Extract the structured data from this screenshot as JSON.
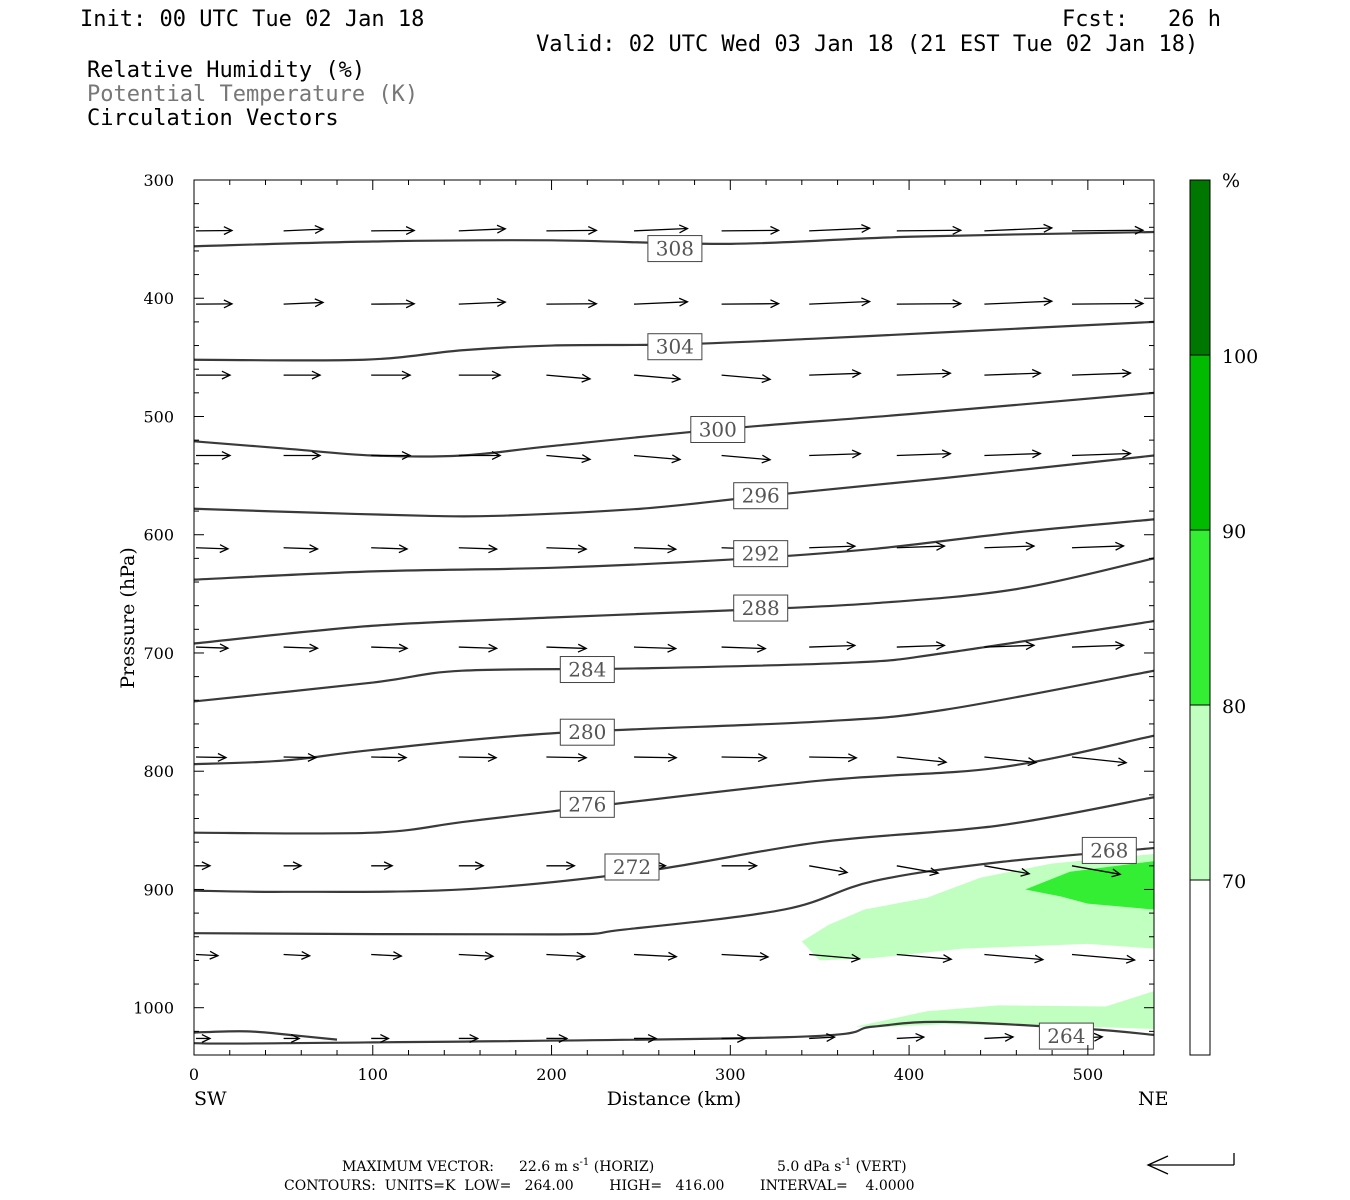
{
  "header": {
    "init": "Init: 00 UTC Tue 02 Jan 18",
    "fcst": "Fcst:   26 h",
    "valid": "Valid: 02 UTC Wed 03 Jan 18 (21 EST Tue 02 Jan 18)",
    "field1": "Relative Humidity (%)",
    "field2": "Potential Temperature (K)",
    "field3": "Circulation Vectors"
  },
  "footer": {
    "max_vector_label": "MAXIMUM VECTOR:",
    "horiz_value": "22.6 m s",
    "horiz_exp": "-1",
    "horiz_tag": "(HORIZ)",
    "vert_value": "5.0 dPa s",
    "vert_exp": "-1",
    "vert_tag": "(VERT)",
    "contours_line": "CONTOURS:  UNITS=K  LOW=   264.00        HIGH=   416.00        INTERVAL=    4.0000"
  },
  "colorbar": {
    "unit": "%",
    "levels": [
      "70",
      "80",
      "90",
      "100"
    ],
    "colors": [
      "#ffffff",
      "#c0ffc0",
      "#33ee33",
      "#00bb00",
      "#007700"
    ]
  },
  "chart_data": {
    "type": "cross-section",
    "xlabel": "Distance (km)",
    "ylabel": "Pressure (hPa)",
    "xlim": [
      0,
      537
    ],
    "ylim": [
      1040,
      300
    ],
    "x_ticks": [
      "0",
      "100",
      "200",
      "300",
      "400",
      "500"
    ],
    "y_ticks": [
      "300",
      "400",
      "500",
      "600",
      "700",
      "800",
      "900",
      "1000"
    ],
    "left_end_label": "SW",
    "right_end_label": "NE",
    "theta_contours": [
      {
        "level": "308",
        "label_at": [
          269,
          358
        ],
        "points": [
          [
            0,
            356
          ],
          [
            100,
            352
          ],
          [
            200,
            351
          ],
          [
            300,
            354
          ],
          [
            400,
            348
          ],
          [
            537,
            344
          ]
        ]
      },
      {
        "level": "304",
        "label_at": [
          269,
          441
        ],
        "points": [
          [
            0,
            452
          ],
          [
            95,
            452
          ],
          [
            150,
            444
          ],
          [
            200,
            440
          ],
          [
            270,
            439
          ],
          [
            350,
            434
          ],
          [
            430,
            428
          ],
          [
            537,
            420
          ]
        ]
      },
      {
        "level": "300",
        "label_at": [
          293,
          511
        ],
        "points": [
          [
            0,
            521
          ],
          [
            50,
            527
          ],
          [
            100,
            533
          ],
          [
            150,
            533
          ],
          [
            200,
            525
          ],
          [
            300,
            510
          ],
          [
            400,
            498
          ],
          [
            537,
            480
          ]
        ]
      },
      {
        "level": "296",
        "label_at": [
          317,
          567
        ],
        "points": [
          [
            0,
            578
          ],
          [
            60,
            581
          ],
          [
            130,
            584
          ],
          [
            170,
            584
          ],
          [
            250,
            578
          ],
          [
            320,
            567
          ],
          [
            420,
            552
          ],
          [
            537,
            533
          ]
        ]
      },
      {
        "level": "292",
        "label_at": [
          317,
          616
        ],
        "points": [
          [
            0,
            638
          ],
          [
            100,
            631
          ],
          [
            200,
            628
          ],
          [
            300,
            621
          ],
          [
            380,
            612
          ],
          [
            460,
            598
          ],
          [
            537,
            587
          ]
        ]
      },
      {
        "level": "288",
        "label_at": [
          317,
          662
        ],
        "points": [
          [
            0,
            692
          ],
          [
            100,
            677
          ],
          [
            200,
            670
          ],
          [
            300,
            664
          ],
          [
            380,
            658
          ],
          [
            460,
            646
          ],
          [
            537,
            620
          ]
        ]
      },
      {
        "level": "284",
        "label_at": [
          220,
          714
        ],
        "points": [
          [
            0,
            741
          ],
          [
            100,
            725
          ],
          [
            150,
            715
          ],
          [
            250,
            713
          ],
          [
            370,
            708
          ],
          [
            420,
            700
          ],
          [
            537,
            673
          ]
        ]
      },
      {
        "level": "280",
        "label_at": [
          220,
          767
        ],
        "points": [
          [
            0,
            794
          ],
          [
            50,
            791
          ],
          [
            100,
            782
          ],
          [
            200,
            768
          ],
          [
            350,
            758
          ],
          [
            420,
            748
          ],
          [
            537,
            715
          ]
        ]
      },
      {
        "level": "276",
        "label_at": [
          220,
          828
        ],
        "points": [
          [
            0,
            852
          ],
          [
            100,
            852
          ],
          [
            150,
            843
          ],
          [
            200,
            834
          ],
          [
            350,
            808
          ],
          [
            450,
            797
          ],
          [
            537,
            770
          ]
        ]
      },
      {
        "level": "272",
        "label_at": [
          245,
          881
        ],
        "points": [
          [
            0,
            901
          ],
          [
            50,
            902
          ],
          [
            150,
            900
          ],
          [
            250,
            885
          ],
          [
            350,
            860
          ],
          [
            450,
            846
          ],
          [
            537,
            822
          ]
        ]
      },
      {
        "level": "268",
        "label_at": [
          512,
          867
        ],
        "points": [
          [
            0,
            937
          ],
          [
            200,
            938
          ],
          [
            240,
            934
          ],
          [
            330,
            917
          ],
          [
            380,
            893
          ],
          [
            450,
            877
          ],
          [
            537,
            865
          ]
        ]
      },
      {
        "level": "264",
        "label_at": [
          488,
          1024
        ],
        "points": [
          [
            0,
            1030
          ],
          [
            50,
            1030
          ],
          [
            330,
            1025
          ],
          [
            380,
            1016
          ],
          [
            420,
            1012
          ],
          [
            500,
            1018
          ],
          [
            537,
            1023
          ]
        ]
      },
      {
        "level": "",
        "label_at": null,
        "points": [
          [
            0,
            1021
          ],
          [
            30,
            1020
          ],
          [
            60,
            1024
          ],
          [
            80,
            1027
          ]
        ]
      }
    ],
    "rh_shading": [
      {
        "range": "70-80",
        "points": [
          [
            340,
            944
          ],
          [
            355,
            930
          ],
          [
            375,
            917
          ],
          [
            410,
            907
          ],
          [
            440,
            890
          ],
          [
            480,
            878
          ],
          [
            537,
            870
          ],
          [
            537,
            950
          ],
          [
            500,
            946
          ],
          [
            430,
            950
          ],
          [
            380,
            958
          ],
          [
            350,
            960
          ]
        ]
      },
      {
        "range": "80-90",
        "points": [
          [
            465,
            900
          ],
          [
            490,
            885
          ],
          [
            537,
            876
          ],
          [
            537,
            917
          ],
          [
            500,
            912
          ],
          [
            485,
            906
          ]
        ]
      },
      {
        "range": "70-80",
        "points": [
          [
            370,
            1016
          ],
          [
            410,
            1003
          ],
          [
            450,
            998
          ],
          [
            510,
            999
          ],
          [
            537,
            986
          ],
          [
            537,
            1018
          ],
          [
            500,
            1016
          ],
          [
            420,
            1014
          ],
          [
            390,
            1016
          ]
        ]
      }
    ],
    "vector_rows_hPa": [
      343,
      405,
      465,
      533,
      611,
      695,
      788,
      880,
      955,
      1026
    ],
    "vector_columns_km": [
      0,
      49,
      98,
      147,
      196,
      245,
      294,
      343,
      392,
      441,
      490
    ]
  }
}
